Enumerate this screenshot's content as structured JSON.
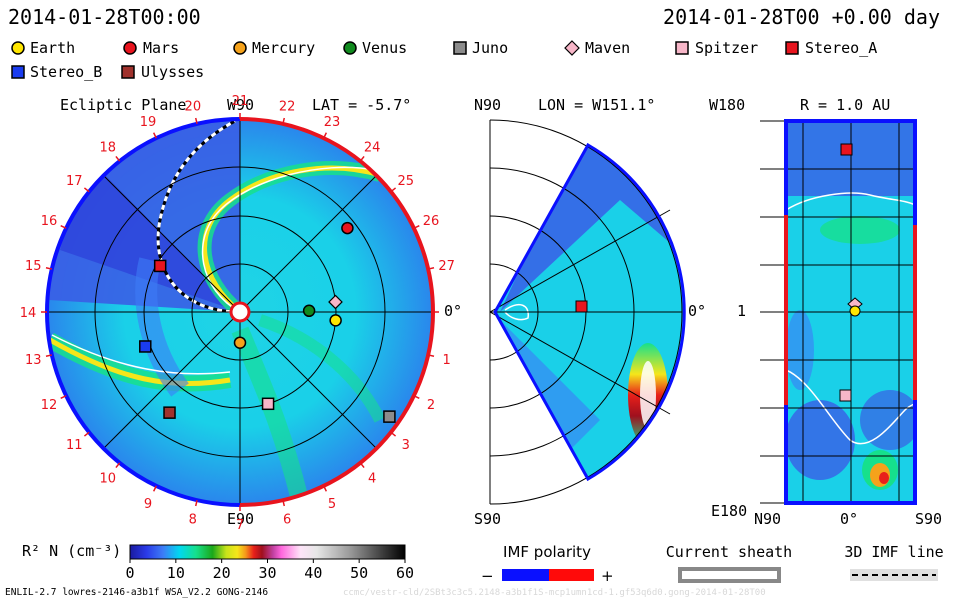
{
  "header": {
    "date_left": "2014-01-28T00:00",
    "date_right": "2014-01-28T00 +0.00 day"
  },
  "legend": {
    "items": [
      {
        "label": "Earth",
        "marker": "circle",
        "color": "#ffe600"
      },
      {
        "label": "Mars",
        "marker": "circle",
        "color": "#e8141e"
      },
      {
        "label": "Mercury",
        "marker": "circle",
        "color": "#f5a21b"
      },
      {
        "label": "Venus",
        "marker": "circle",
        "color": "#108a1e"
      },
      {
        "label": "Juno",
        "marker": "square",
        "color": "#8c8c8c"
      },
      {
        "label": "Maven",
        "marker": "diamond",
        "color": "#f7b6c8"
      },
      {
        "label": "Spitzer",
        "marker": "square",
        "color": "#f7b6c8"
      },
      {
        "label": "Stereo_A",
        "marker": "square",
        "color": "#e8141e"
      },
      {
        "label": "Stereo_B",
        "marker": "square",
        "color": "#1a3cf0"
      },
      {
        "label": "Ulysses",
        "marker": "square",
        "color": "#a0322d"
      }
    ]
  },
  "panels": {
    "ecliptic": {
      "title": "Ecliptic Plane",
      "lat_label": "LAT = -5.7°",
      "label_top": "W90",
      "label_bottom": "E90",
      "label_right": "0°",
      "carrington_ticks": [
        "19",
        "20",
        "21",
        "22",
        "23",
        "24",
        "25",
        "26",
        "27",
        "0",
        "1",
        "2",
        "3",
        "4",
        "5",
        "6",
        "7",
        "8",
        "9",
        "10",
        "11",
        "12",
        "13",
        "14",
        "15",
        "16",
        "17",
        "18"
      ]
    },
    "meridional": {
      "label_lon": "LON = W151.1°",
      "label_top": "N90",
      "label_bottom": "S90",
      "label_right": "0°"
    },
    "radial": {
      "label_r": "R = 1.0 AU",
      "label_top_left": "W180",
      "label_mid_left": "1",
      "label_bottom_left": "E180",
      "label_bottom_n": "N90",
      "label_bottom_zero": "0°",
      "label_bottom_s": "S90"
    }
  },
  "colorbar": {
    "label": "R² N (cm⁻³)",
    "ticks": [
      "0",
      "10",
      "20",
      "30",
      "40",
      "50",
      "60"
    ]
  },
  "imf_polarity": {
    "title": "IMF polarity",
    "minus": "−",
    "plus": "+",
    "neg_color": "#0a10ff",
    "pos_color": "#ff0a0a"
  },
  "current_sheath": {
    "title": "Current sheath"
  },
  "imf_line": {
    "title": "3D IMF line"
  },
  "footer": {
    "model": "ENLIL-2.7 lowres-2146-a3b1f WSA_V2.2 GONG-2146",
    "watermark": "ccmc/vestr-cld/2SBt3c3c5.2148-a3b1f1S-mcp1umn1cd-1.gf53q6d0.gong-2014-01-28T00"
  },
  "chart_data": {
    "type": "heatmap",
    "title": "",
    "colorbar": {
      "label": "R² N (cm⁻³)",
      "range": [
        0,
        60
      ],
      "ticks": [
        0,
        10,
        20,
        30,
        40,
        50,
        60
      ]
    },
    "panels": [
      "Ecliptic Plane (LAT = -5.7°)",
      "Meridional (LON = W151.1°)",
      "R = 1.0 AU"
    ],
    "ecliptic_positions": [
      {
        "name": "Earth",
        "angle_deg": -5,
        "r_au": 1.0
      },
      {
        "name": "Mars",
        "angle_deg": 38,
        "r_au": 1.42
      },
      {
        "name": "Mercury",
        "angle_deg": -90,
        "r_au": 0.32
      },
      {
        "name": "Venus",
        "angle_deg": 1,
        "r_au": 0.72
      },
      {
        "name": "Juno",
        "angle_deg": -35,
        "r_au": 1.9
      },
      {
        "name": "Maven",
        "angle_deg": 6,
        "r_au": 1.0
      },
      {
        "name": "Spitzer",
        "angle_deg": -73,
        "r_au": 1.0
      },
      {
        "name": "Stereo_A",
        "angle_deg": 150,
        "r_au": 0.96
      },
      {
        "name": "Stereo_B",
        "angle_deg": -160,
        "r_au": 1.05
      },
      {
        "name": "Ulysses",
        "angle_deg": -125,
        "r_au": 1.28
      }
    ]
  }
}
